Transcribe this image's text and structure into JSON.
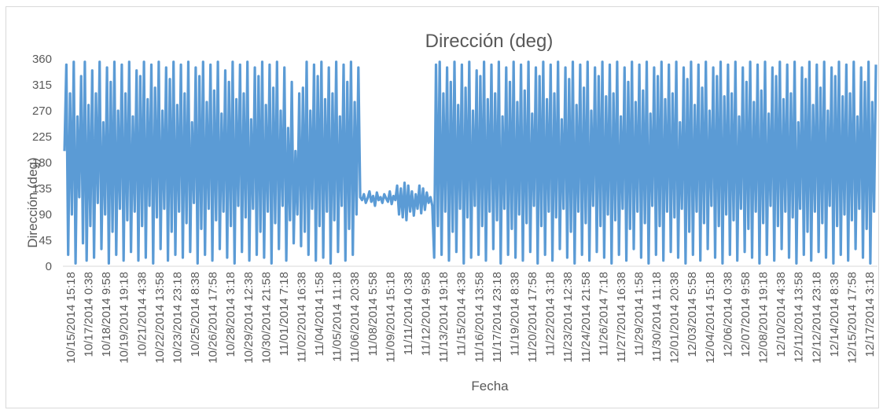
{
  "chart_data": {
    "type": "line",
    "title": "Dirección (deg)",
    "xlabel": "Fecha",
    "ylabel": "Dirección (deg)",
    "ylim": [
      0,
      360
    ],
    "yticks": [
      "0",
      "45",
      "90",
      "135",
      "180",
      "225",
      "270",
      "315",
      "360"
    ],
    "grid": false,
    "legend": "none",
    "color": "#5B9BD5",
    "x_tick_labels": [
      "10/15/2014 15:18",
      "10/17/2014 0:38",
      "10/18/2014 9:58",
      "10/19/2014 19:18",
      "10/21/2014 4:38",
      "10/22/2014 13:58",
      "10/23/2014 23:18",
      "10/25/2014 8:38",
      "10/26/2014 17:58",
      "10/28/2014 3:18",
      "10/29/2014 12:38",
      "10/30/2014 21:58",
      "11/01/2014 7:18",
      "11/02/2014 16:38",
      "11/04/2014 1:58",
      "11/05/2014 11:18",
      "11/06/2014 20:38",
      "11/08/2014 5:58",
      "11/09/2014 15:18",
      "11/11/2014 0:38",
      "11/12/2014 9:58",
      "11/13/2014 19:18",
      "11/15/2014 4:38",
      "11/16/2014 13:58",
      "11/17/2014 23:18",
      "11/19/2014 8:38",
      "11/20/2014 17:58",
      "11/22/2014 3:18",
      "11/23/2014 12:38",
      "11/24/2014 21:58",
      "11/26/2014 7:18",
      "11/27/2014 16:38",
      "11/29/2014 1:58",
      "11/30/2014 11:18",
      "12/01/2014 20:38",
      "12/03/2014 5:58",
      "12/04/2014 15:18",
      "12/06/2014 0:38",
      "12/07/2014 9:58",
      "12/08/2014 19:18",
      "12/10/2014 4:38",
      "12/11/2014 13:58",
      "12/12/2014 23:18",
      "12/14/2014 8:38",
      "12/15/2014 17:58",
      "12/17/2014 3:18"
    ],
    "series": [
      {
        "values": [
          200,
          350,
          20,
          300,
          90,
          355,
          5,
          260,
          120,
          330,
          40,
          355,
          10,
          280,
          70,
          340,
          15,
          300,
          110,
          355,
          30,
          250,
          90,
          345,
          5,
          320,
          60,
          355,
          20,
          270,
          100,
          350,
          10,
          300,
          80,
          355,
          25,
          260,
          95,
          340,
          10,
          330,
          70,
          355,
          15,
          290,
          105,
          350,
          5,
          310,
          85,
          355,
          30,
          270,
          100,
          345,
          10,
          325,
          60,
          355,
          20,
          280,
          95,
          350,
          15,
          300,
          75,
          355,
          25,
          250,
          110,
          345,
          5,
          330,
          65,
          355,
          20,
          285,
          100,
          350,
          10,
          305,
          80,
          355,
          30,
          265,
          95,
          340,
          15,
          320,
          70,
          355,
          5,
          290,
          105,
          350,
          25,
          300,
          85,
          355,
          10,
          255,
          100,
          345,
          20,
          330,
          60,
          355,
          15,
          280,
          95,
          350,
          5,
          310,
          75,
          355,
          30,
          270,
          105,
          345,
          10,
          240,
          80,
          320,
          40,
          200,
          90,
          300,
          35,
          310,
          60,
          355,
          20,
          270,
          100,
          350,
          10,
          330,
          70,
          355,
          15,
          290,
          95,
          345,
          5,
          300,
          80,
          355,
          25,
          260,
          105,
          350,
          10,
          320,
          65,
          355,
          20,
          285,
          90,
          345,
          120,
          115,
          125,
          110,
          118,
          130,
          112,
          122,
          105,
          128,
          115,
          120,
          110,
          125,
          118,
          112,
          130,
          108,
          122,
          115,
          140,
          90,
          135,
          85,
          145,
          80,
          140,
          95,
          130,
          88,
          125,
          100,
          140,
          92,
          135,
          98,
          128,
          110,
          120,
          105,
          15,
          350,
          70,
          355,
          20,
          300,
          95,
          345,
          10,
          320,
          60,
          355,
          25,
          280,
          100,
          350,
          5,
          310,
          85,
          355,
          15,
          270,
          105,
          340,
          20,
          330,
          70,
          355,
          10,
          290,
          95,
          350,
          30,
          300,
          80,
          355,
          5,
          260,
          100,
          345,
          20,
          320,
          65,
          355,
          15,
          285,
          90,
          350,
          10,
          305,
          75,
          355,
          25,
          265,
          105,
          345,
          5,
          330,
          70,
          355,
          20,
          290,
          95,
          350,
          10,
          300,
          85,
          355,
          30,
          255,
          100,
          345,
          15,
          325,
          60,
          355,
          5,
          280,
          95,
          350,
          20,
          310,
          75,
          355,
          10,
          270,
          105,
          345,
          25,
          330,
          70,
          355,
          15,
          295,
          90,
          350,
          5,
          300,
          80,
          355,
          20,
          260,
          100,
          345,
          10,
          320,
          65,
          355,
          30,
          285,
          95,
          350,
          15,
          305,
          75,
          355,
          5,
          265,
          105,
          345,
          20,
          330,
          70,
          355,
          10,
          290,
          95,
          350,
          25,
          300,
          85,
          355,
          15,
          250,
          100,
          345,
          5,
          325,
          60,
          355,
          20,
          280,
          95,
          350,
          10,
          310,
          75,
          355,
          30,
          270,
          105,
          345,
          15,
          330,
          70,
          355,
          5,
          295,
          90,
          350,
          20,
          300,
          80,
          355,
          10,
          260,
          100,
          345,
          25,
          320,
          65,
          355,
          15,
          285,
          95,
          350,
          5,
          305,
          75,
          355,
          20,
          265,
          105,
          345,
          10,
          330,
          70,
          355,
          30,
          290,
          95,
          350,
          15,
          300,
          85,
          355,
          5,
          250,
          100,
          345,
          20,
          325,
          60,
          355,
          10,
          280,
          95,
          350,
          25,
          310,
          75,
          355,
          15,
          270,
          105,
          345,
          5,
          330,
          70,
          355,
          20,
          295,
          90,
          350,
          10,
          300,
          80,
          355,
          30,
          260,
          100,
          345,
          15,
          320,
          65,
          355,
          5,
          285,
          95,
          350
        ]
      }
    ]
  }
}
